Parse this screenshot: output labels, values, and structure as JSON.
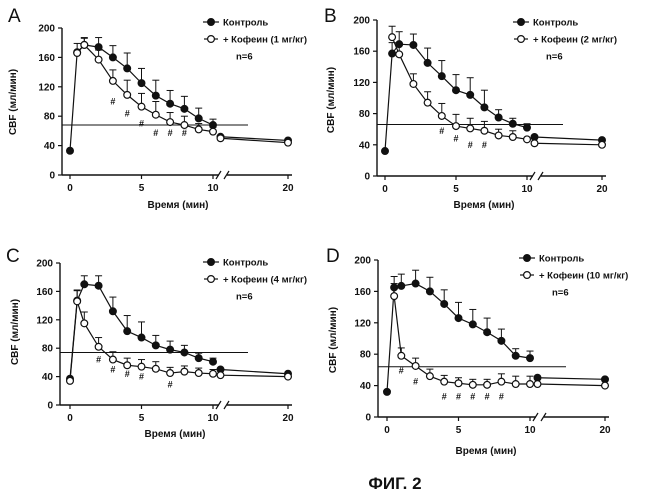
{
  "figure_title": "ФИГ. 2",
  "colors": {
    "ink": "#111111",
    "paper": "#ffffff"
  },
  "chart_data": [
    {
      "panel": "A",
      "type": "line",
      "xlabel": "Время (мин)",
      "ylabel": "CBF (мл/мин)",
      "xticks": [
        0,
        5,
        10,
        20
      ],
      "yticks": [
        0,
        40,
        80,
        120,
        160,
        200
      ],
      "yticklabels": [
        "0",
        "40",
        "80",
        "120",
        "160",
        "200"
      ],
      "ylim": [
        0,
        200
      ],
      "axis_break": true,
      "reference_line": 68,
      "n_label": "n=6",
      "series": [
        {
          "name": "Контроль",
          "marker": "filled-circle",
          "x": [
            0,
            0.5,
            1,
            2,
            3,
            4,
            5,
            6,
            7,
            8,
            9,
            10,
            11,
            20
          ],
          "y": [
            33,
            167,
            177,
            174,
            160,
            145,
            125,
            108,
            97,
            90,
            77,
            68,
            52,
            47
          ],
          "err": [
            0,
            12,
            10,
            13,
            16,
            21,
            20,
            21,
            18,
            17,
            14,
            8,
            0,
            0
          ]
        },
        {
          "name": "+ Кофеин (1 мг/кг)",
          "marker": "open-circle",
          "x": [
            0.5,
            1,
            2,
            3,
            4,
            5,
            6,
            7,
            8,
            9,
            10,
            11,
            20
          ],
          "y": [
            166,
            177,
            157,
            128,
            109,
            93,
            82,
            72,
            68,
            62,
            59,
            50,
            44
          ],
          "err": [
            0,
            9,
            13,
            15,
            20,
            18,
            18,
            13,
            12,
            8,
            6,
            0,
            0
          ]
        }
      ],
      "significance": [
        {
          "x": 3,
          "y": 100,
          "label": "#"
        },
        {
          "x": 4,
          "y": 84,
          "label": "#"
        },
        {
          "x": 5,
          "y": 70,
          "label": "#"
        },
        {
          "x": 6,
          "y": 57,
          "label": "#"
        },
        {
          "x": 7,
          "y": 57,
          "label": "#"
        },
        {
          "x": 8,
          "y": 57,
          "label": "#"
        }
      ]
    },
    {
      "panel": "B",
      "type": "line",
      "xlabel": "Время (мин)",
      "ylabel": "CBF (мл/мин)",
      "xticks": [
        0,
        5,
        10,
        20
      ],
      "yticks": [
        0,
        40,
        80,
        120,
        160,
        200
      ],
      "yticklabels": [
        "0",
        "40",
        "80",
        "120",
        "160",
        "200"
      ],
      "ylim": [
        0,
        200
      ],
      "axis_break": true,
      "reference_line": 66,
      "n_label": "n=6",
      "series": [
        {
          "name": "Контроль",
          "marker": "filled-circle",
          "x": [
            0,
            0.5,
            1,
            2,
            3,
            4,
            5,
            6,
            7,
            8,
            9,
            10,
            11,
            20
          ],
          "y": [
            32,
            157,
            169,
            168,
            145,
            128,
            110,
            104,
            88,
            75,
            67,
            62,
            50,
            46
          ],
          "err": [
            0,
            14,
            16,
            14,
            19,
            20,
            20,
            22,
            22,
            10,
            7,
            5,
            0,
            0
          ]
        },
        {
          "name": "+ Кофеин (2 мг/кг)",
          "marker": "open-circle",
          "x": [
            0.5,
            1,
            2,
            3,
            4,
            5,
            6,
            7,
            8,
            9,
            10,
            11,
            20
          ],
          "y": [
            178,
            156,
            118,
            94,
            77,
            64,
            61,
            58,
            52,
            50,
            47,
            42,
            40
          ],
          "err": [
            14,
            12,
            13,
            14,
            16,
            15,
            13,
            12,
            8,
            8,
            0,
            0,
            0
          ]
        }
      ],
      "significance": [
        {
          "x": 4,
          "y": 58,
          "label": "#"
        },
        {
          "x": 5,
          "y": 48,
          "label": "#"
        },
        {
          "x": 6,
          "y": 40,
          "label": "#"
        },
        {
          "x": 7,
          "y": 40,
          "label": "#"
        }
      ]
    },
    {
      "panel": "C",
      "type": "line",
      "xlabel": "Время (мин)",
      "ylabel": "CBF (мл/мин)",
      "xticks": [
        0,
        5,
        10,
        20
      ],
      "yticks": [
        0,
        40,
        80,
        120,
        160,
        200
      ],
      "yticklabels": [
        "0",
        "40",
        "80",
        "120",
        "160",
        "200"
      ],
      "ylim": [
        0,
        200
      ],
      "axis_break": true,
      "reference_line": 74,
      "n_label": "n=6",
      "series": [
        {
          "name": "Контроль",
          "marker": "filled-circle",
          "x": [
            0,
            0.5,
            1,
            2,
            3,
            4,
            5,
            6,
            7,
            8,
            9,
            10,
            11,
            20
          ],
          "y": [
            37,
            147,
            170,
            168,
            132,
            104,
            95,
            84,
            78,
            74,
            66,
            61,
            50,
            44
          ],
          "err": [
            0,
            15,
            12,
            14,
            20,
            22,
            22,
            14,
            12,
            10,
            7,
            5,
            0,
            0
          ]
        },
        {
          "name": "+ Кофеин (4 мг/кг)",
          "marker": "open-circle",
          "x": [
            0,
            0.5,
            1,
            2,
            3,
            4,
            5,
            6,
            7,
            8,
            9,
            10,
            11,
            20
          ],
          "y": [
            34,
            146,
            115,
            82,
            64,
            56,
            54,
            51,
            45,
            47,
            45,
            44,
            42,
            40
          ],
          "err": [
            0,
            15,
            16,
            13,
            11,
            10,
            10,
            10,
            8,
            8,
            7,
            6,
            0,
            0
          ]
        }
      ],
      "significance": [
        {
          "x": 2,
          "y": 64,
          "label": "#"
        },
        {
          "x": 3,
          "y": 50,
          "label": "#"
        },
        {
          "x": 4,
          "y": 44,
          "label": "#"
        },
        {
          "x": 5,
          "y": 40,
          "label": "#"
        },
        {
          "x": 7,
          "y": 29,
          "label": "#"
        }
      ]
    },
    {
      "panel": "D",
      "type": "line",
      "xlabel": "Время (мин)",
      "ylabel": "CBF (мл/мин)",
      "xticks": [
        0,
        5,
        10,
        20
      ],
      "yticks": [
        0,
        40,
        80,
        120,
        160,
        200
      ],
      "yticklabels": [
        "0",
        "40",
        "80",
        "120",
        "160",
        "200"
      ],
      "ylim": [
        0,
        200
      ],
      "axis_break": true,
      "reference_line": 64,
      "n_label": "n=6",
      "series": [
        {
          "name": "Контроль",
          "marker": "filled-circle",
          "x": [
            0,
            0.5,
            1,
            2,
            3,
            4,
            5,
            6,
            7,
            8,
            9,
            10,
            11,
            20
          ],
          "y": [
            32,
            165,
            167,
            170,
            160,
            144,
            126,
            118,
            108,
            97,
            78,
            75,
            50,
            48
          ],
          "err": [
            0,
            14,
            15,
            17,
            18,
            18,
            20,
            19,
            18,
            15,
            9,
            9,
            0,
            0
          ]
        },
        {
          "name": "+ Кофеин (10 мг/кг)",
          "marker": "open-circle",
          "x": [
            0.5,
            1,
            2,
            3,
            4,
            5,
            6,
            7,
            8,
            9,
            10,
            11,
            20
          ],
          "y": [
            154,
            78,
            65,
            52,
            45,
            43,
            41,
            41,
            45,
            42,
            42,
            42,
            40
          ],
          "err": [
            16,
            10,
            10,
            9,
            8,
            7,
            7,
            7,
            10,
            10,
            10,
            0,
            0
          ]
        }
      ],
      "significance": [
        {
          "x": 1,
          "y": 59,
          "label": "#"
        },
        {
          "x": 2,
          "y": 45,
          "label": "#"
        },
        {
          "x": 4,
          "y": 26,
          "label": "#"
        },
        {
          "x": 5,
          "y": 26,
          "label": "#"
        },
        {
          "x": 6,
          "y": 26,
          "label": "#"
        },
        {
          "x": 7,
          "y": 26,
          "label": "#"
        },
        {
          "x": 8,
          "y": 26,
          "label": "#"
        }
      ]
    }
  ]
}
